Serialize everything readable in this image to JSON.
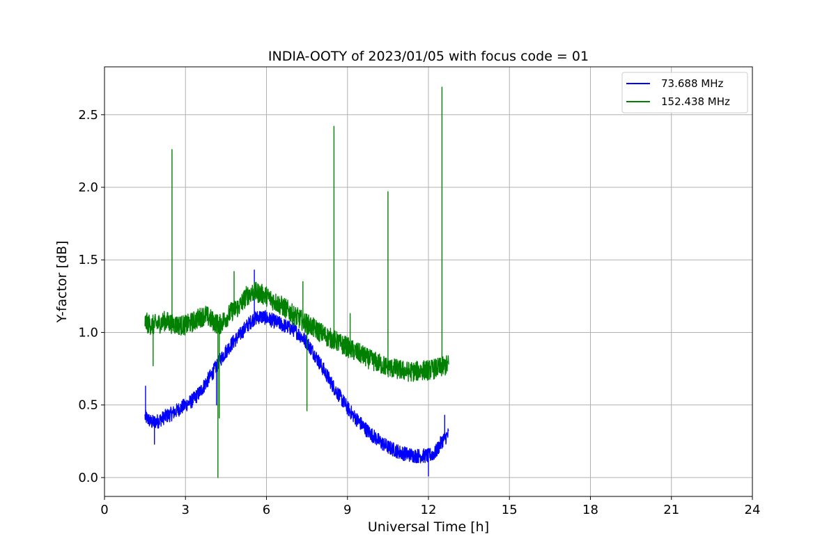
{
  "chart_data": {
    "type": "line",
    "title": "INDIA-OOTY of 2023/01/05 with focus code = 01",
    "xlabel": "Universal Time [h]",
    "ylabel": "Y-factor [dB]",
    "xlim": [
      0,
      24
    ],
    "ylim": [
      -0.13,
      2.83
    ],
    "xticks": [
      0,
      3,
      6,
      9,
      12,
      15,
      18,
      21,
      24
    ],
    "xtick_labels": [
      "0",
      "3",
      "6",
      "9",
      "12",
      "15",
      "18",
      "21",
      "24"
    ],
    "yticks": [
      0.0,
      0.5,
      1.0,
      1.5,
      2.0,
      2.5
    ],
    "ytick_labels": [
      "0.0",
      "0.5",
      "1.0",
      "1.5",
      "2.0",
      "2.5"
    ],
    "grid": true,
    "legend_position": "top-right",
    "series": [
      {
        "name": "  73.688 MHz",
        "color": "#0000ff",
        "x": [
          1.5,
          1.75,
          2.0,
          2.25,
          2.5,
          2.75,
          3.0,
          3.25,
          3.5,
          3.75,
          4.0,
          4.25,
          4.5,
          4.75,
          5.0,
          5.25,
          5.5,
          5.75,
          6.0,
          6.25,
          6.5,
          6.75,
          7.0,
          7.25,
          7.5,
          7.75,
          8.0,
          8.25,
          8.5,
          8.75,
          9.0,
          9.25,
          9.5,
          9.75,
          10.0,
          10.25,
          10.5,
          10.75,
          11.0,
          11.25,
          11.5,
          11.75,
          12.0,
          12.25,
          12.5,
          12.75
        ],
        "y": [
          0.42,
          0.38,
          0.39,
          0.42,
          0.44,
          0.47,
          0.5,
          0.53,
          0.58,
          0.65,
          0.72,
          0.8,
          0.87,
          0.93,
          0.98,
          1.04,
          1.09,
          1.11,
          1.1,
          1.08,
          1.06,
          1.04,
          1.02,
          0.98,
          0.93,
          0.86,
          0.78,
          0.7,
          0.62,
          0.55,
          0.48,
          0.42,
          0.37,
          0.32,
          0.28,
          0.24,
          0.21,
          0.19,
          0.17,
          0.16,
          0.15,
          0.15,
          0.15,
          0.17,
          0.25,
          0.3
        ],
        "noise": 0.05,
        "spikes": [
          {
            "x": 1.52,
            "y": 0.63
          },
          {
            "x": 1.85,
            "y": 0.23
          },
          {
            "x": 4.15,
            "y": 0.5
          },
          {
            "x": 5.55,
            "y": 1.43
          },
          {
            "x": 12.0,
            "y": 0.01
          },
          {
            "x": 12.6,
            "y": 0.43
          }
        ]
      },
      {
        "name": "152.438 MHz",
        "color": "#008000",
        "x": [
          1.5,
          1.75,
          2.0,
          2.25,
          2.5,
          2.75,
          3.0,
          3.25,
          3.5,
          3.75,
          4.0,
          4.25,
          4.5,
          4.75,
          5.0,
          5.25,
          5.5,
          5.75,
          6.0,
          6.25,
          6.5,
          6.75,
          7.0,
          7.25,
          7.5,
          7.75,
          8.0,
          8.25,
          8.5,
          8.75,
          9.0,
          9.25,
          9.5,
          9.75,
          10.0,
          10.25,
          10.5,
          10.75,
          11.0,
          11.25,
          11.5,
          11.75,
          12.0,
          12.25,
          12.5,
          12.75
        ],
        "y": [
          1.07,
          1.05,
          1.06,
          1.08,
          1.06,
          1.05,
          1.05,
          1.07,
          1.1,
          1.12,
          1.08,
          1.05,
          1.1,
          1.15,
          1.18,
          1.25,
          1.28,
          1.27,
          1.25,
          1.22,
          1.19,
          1.16,
          1.12,
          1.09,
          1.06,
          1.03,
          1.0,
          0.97,
          0.95,
          0.92,
          0.9,
          0.87,
          0.85,
          0.82,
          0.8,
          0.78,
          0.76,
          0.75,
          0.74,
          0.73,
          0.73,
          0.74,
          0.74,
          0.75,
          0.76,
          0.78
        ],
        "noise": 0.07,
        "spikes": [
          {
            "x": 1.8,
            "y": 0.77
          },
          {
            "x": 2.5,
            "y": 2.26
          },
          {
            "x": 4.2,
            "y": 0.0
          },
          {
            "x": 4.25,
            "y": 0.41
          },
          {
            "x": 4.8,
            "y": 1.42
          },
          {
            "x": 7.35,
            "y": 1.35
          },
          {
            "x": 7.5,
            "y": 0.46
          },
          {
            "x": 8.5,
            "y": 2.42
          },
          {
            "x": 9.1,
            "y": 1.13
          },
          {
            "x": 10.5,
            "y": 1.97
          },
          {
            "x": 12.5,
            "y": 2.69
          }
        ]
      }
    ]
  }
}
